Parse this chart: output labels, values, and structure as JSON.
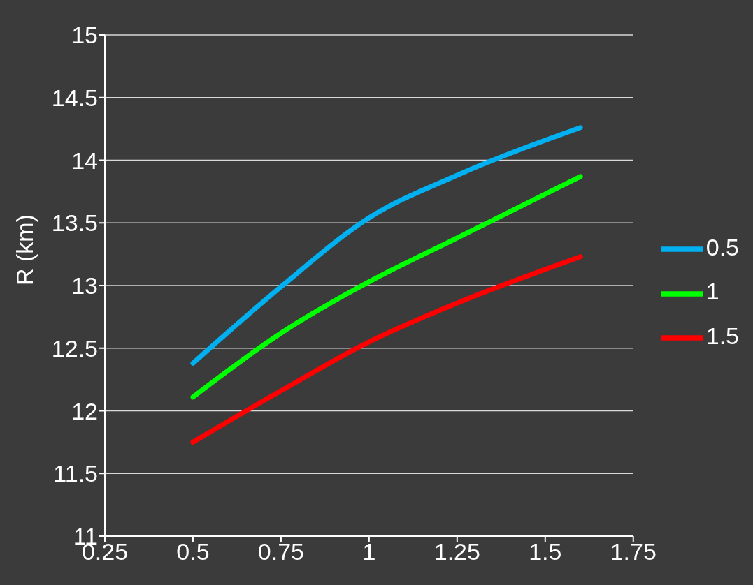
{
  "chart_data": {
    "type": "line",
    "ylabel": "R (km)",
    "x": [
      0.5,
      0.75,
      1,
      1.25,
      1.6
    ],
    "series": [
      {
        "name": "1.5",
        "color": "#ff0000",
        "values": [
          11.75,
          12.16,
          12.55,
          12.86,
          13.23
        ]
      },
      {
        "name": "1",
        "color": "#00ff00",
        "values": [
          12.11,
          12.62,
          13.03,
          13.38,
          13.87
        ]
      },
      {
        "name": "0.5",
        "color": "#00b0f0",
        "values": [
          12.38,
          12.99,
          13.54,
          13.88,
          14.26
        ]
      }
    ],
    "xlim": [
      0.25,
      1.75
    ],
    "xticks": [
      0.25,
      0.5,
      0.75,
      1,
      1.25,
      1.5,
      1.75
    ],
    "ylim": [
      11,
      15
    ],
    "yticks": [
      11,
      11.5,
      12,
      12.5,
      13,
      13.5,
      14,
      14.5,
      15
    ],
    "grid": "y",
    "legend": "right",
    "marker": "none",
    "line_style": "solid"
  }
}
